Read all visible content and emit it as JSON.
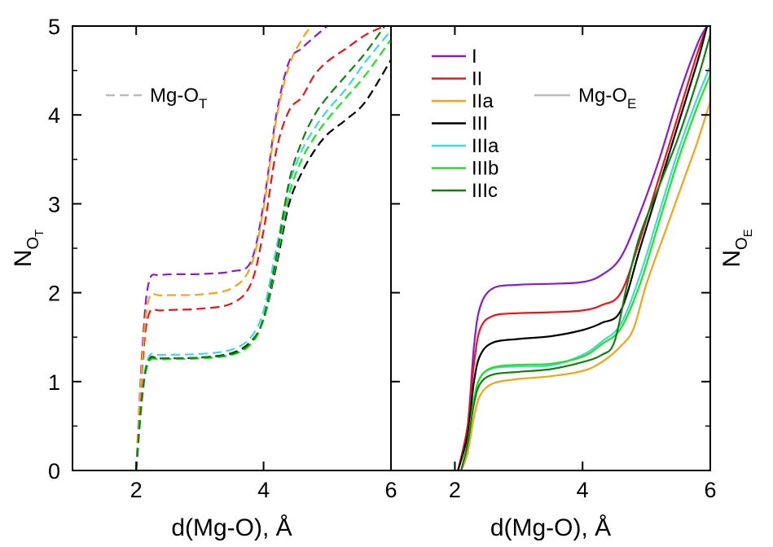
{
  "chart_data": [
    {
      "type": "line",
      "panel": "left",
      "xlabel": "d(Mg-O), Å",
      "ylabel": {
        "main": "N",
        "sub": "O",
        "subsub": "T"
      },
      "xlim": [
        1,
        6
      ],
      "ylim": [
        0,
        5
      ],
      "xticks": [
        2,
        4,
        6
      ],
      "yticks": [
        0,
        1,
        2,
        3,
        4,
        5
      ],
      "line_style": "dashed",
      "legend": {
        "label": {
          "main": "Mg-O",
          "sub": "T"
        },
        "color": "#bbbbbb",
        "style": "dashed",
        "placement": "top-left"
      },
      "series": [
        {
          "name": "I",
          "color": "#8a1cc8",
          "points": [
            [
              2.0,
              0
            ],
            [
              2.1,
              1.4
            ],
            [
              2.2,
              2.12
            ],
            [
              2.4,
              2.2
            ],
            [
              3.0,
              2.21
            ],
            [
              3.5,
              2.24
            ],
            [
              3.8,
              2.35
            ],
            [
              4.0,
              3.0
            ],
            [
              4.2,
              4.0
            ],
            [
              4.4,
              4.6
            ],
            [
              4.6,
              4.75
            ],
            [
              4.8,
              4.88
            ],
            [
              5.0,
              5.0
            ]
          ]
        },
        {
          "name": "II",
          "color": "#e8161b",
          "points": [
            [
              2.0,
              0
            ],
            [
              2.1,
              1.2
            ],
            [
              2.2,
              1.76
            ],
            [
              2.4,
              1.8
            ],
            [
              3.0,
              1.82
            ],
            [
              3.5,
              1.88
            ],
            [
              3.8,
              2.1
            ],
            [
              4.0,
              2.7
            ],
            [
              4.2,
              3.6
            ],
            [
              4.4,
              4.05
            ],
            [
              4.6,
              4.2
            ],
            [
              4.8,
              4.45
            ],
            [
              5.0,
              4.6
            ],
            [
              5.3,
              4.75
            ],
            [
              5.6,
              4.9
            ],
            [
              5.9,
              5.0
            ]
          ]
        },
        {
          "name": "IIa",
          "color": "#f5a318",
          "points": [
            [
              2.0,
              0
            ],
            [
              2.1,
              1.3
            ],
            [
              2.2,
              1.93
            ],
            [
              2.4,
              1.97
            ],
            [
              3.0,
              1.98
            ],
            [
              3.5,
              2.05
            ],
            [
              3.8,
              2.3
            ],
            [
              4.0,
              2.95
            ],
            [
              4.2,
              3.95
            ],
            [
              4.4,
              4.55
            ],
            [
              4.6,
              4.85
            ],
            [
              4.75,
              5.0
            ]
          ]
        },
        {
          "name": "III",
          "color": "#000000",
          "points": [
            [
              2.0,
              0
            ],
            [
              2.1,
              0.9
            ],
            [
              2.2,
              1.25
            ],
            [
              2.4,
              1.26
            ],
            [
              3.0,
              1.27
            ],
            [
              3.5,
              1.32
            ],
            [
              3.8,
              1.45
            ],
            [
              4.0,
              1.7
            ],
            [
              4.2,
              2.3
            ],
            [
              4.4,
              3.0
            ],
            [
              4.6,
              3.35
            ],
            [
              4.8,
              3.6
            ],
            [
              5.0,
              3.78
            ],
            [
              5.3,
              3.95
            ],
            [
              5.6,
              4.15
            ],
            [
              6.0,
              4.62
            ]
          ]
        },
        {
          "name": "IIIa",
          "color": "#40d8d8",
          "points": [
            [
              2.0,
              0
            ],
            [
              2.1,
              0.9
            ],
            [
              2.2,
              1.28
            ],
            [
              2.4,
              1.3
            ],
            [
              3.0,
              1.31
            ],
            [
              3.5,
              1.36
            ],
            [
              3.8,
              1.5
            ],
            [
              4.0,
              1.8
            ],
            [
              4.2,
              2.5
            ],
            [
              4.4,
              3.2
            ],
            [
              4.6,
              3.6
            ],
            [
              4.8,
              3.85
            ],
            [
              5.0,
              4.05
            ],
            [
              5.3,
              4.3
            ],
            [
              5.6,
              4.6
            ],
            [
              6.0,
              4.95
            ]
          ]
        },
        {
          "name": "IIIb",
          "color": "#22e222",
          "points": [
            [
              2.0,
              0
            ],
            [
              2.1,
              0.85
            ],
            [
              2.2,
              1.22
            ],
            [
              2.4,
              1.25
            ],
            [
              3.0,
              1.26
            ],
            [
              3.5,
              1.3
            ],
            [
              3.8,
              1.42
            ],
            [
              4.0,
              1.7
            ],
            [
              4.2,
              2.35
            ],
            [
              4.4,
              3.1
            ],
            [
              4.6,
              3.5
            ],
            [
              4.8,
              3.75
            ],
            [
              5.0,
              3.95
            ],
            [
              5.3,
              4.2
            ],
            [
              5.6,
              4.45
            ],
            [
              6.0,
              4.85
            ]
          ]
        },
        {
          "name": "IIIc",
          "color": "#137f13",
          "points": [
            [
              2.0,
              0
            ],
            [
              2.1,
              0.88
            ],
            [
              2.2,
              1.24
            ],
            [
              2.4,
              1.26
            ],
            [
              3.0,
              1.27
            ],
            [
              3.5,
              1.31
            ],
            [
              3.8,
              1.44
            ],
            [
              4.0,
              1.72
            ],
            [
              4.2,
              2.4
            ],
            [
              4.4,
              3.25
            ],
            [
              4.6,
              3.7
            ],
            [
              4.8,
              4.0
            ],
            [
              5.0,
              4.2
            ],
            [
              5.3,
              4.45
            ],
            [
              5.6,
              4.7
            ],
            [
              5.9,
              5.0
            ]
          ]
        }
      ]
    },
    {
      "type": "line",
      "panel": "right",
      "xlabel": "d(Mg-O), Å",
      "ylabel": {
        "main": "N",
        "sub": "O",
        "subsub": "E"
      },
      "xlim": [
        1,
        6
      ],
      "ylim": [
        0,
        5
      ],
      "xticks": [
        2,
        4,
        6
      ],
      "yticks": [
        0,
        1,
        2,
        3,
        4,
        5
      ],
      "line_style": "solid",
      "legend": {
        "label": {
          "main": "Mg-O",
          "sub": "E"
        },
        "color": "#bbbbbb",
        "style": "solid",
        "placement": "top-right"
      },
      "series": [
        {
          "name": "I",
          "color": "#8a1cc8",
          "points": [
            [
              2.05,
              0
            ],
            [
              2.2,
              0.5
            ],
            [
              2.3,
              1.4
            ],
            [
              2.4,
              1.85
            ],
            [
              2.6,
              2.05
            ],
            [
              3.0,
              2.09
            ],
            [
              3.5,
              2.1
            ],
            [
              4.0,
              2.12
            ],
            [
              4.3,
              2.2
            ],
            [
              4.6,
              2.4
            ],
            [
              4.9,
              2.9
            ],
            [
              5.2,
              3.5
            ],
            [
              5.5,
              4.2
            ],
            [
              5.8,
              4.8
            ],
            [
              5.95,
              5.0
            ]
          ]
        },
        {
          "name": "II",
          "color": "#e8161b",
          "points": [
            [
              2.05,
              0
            ],
            [
              2.2,
              0.5
            ],
            [
              2.3,
              1.2
            ],
            [
              2.4,
              1.6
            ],
            [
              2.6,
              1.74
            ],
            [
              3.0,
              1.77
            ],
            [
              3.5,
              1.78
            ],
            [
              4.0,
              1.8
            ],
            [
              4.3,
              1.86
            ],
            [
              4.6,
              2.0
            ],
            [
              4.9,
              2.6
            ],
            [
              5.2,
              3.3
            ],
            [
              5.5,
              4.0
            ],
            [
              5.8,
              4.7
            ],
            [
              5.95,
              5.0
            ]
          ]
        },
        {
          "name": "IIa",
          "color": "#f5a318",
          "points": [
            [
              2.1,
              0
            ],
            [
              2.2,
              0.2
            ],
            [
              2.3,
              0.6
            ],
            [
              2.4,
              0.85
            ],
            [
              2.6,
              0.98
            ],
            [
              3.0,
              1.03
            ],
            [
              3.5,
              1.06
            ],
            [
              4.0,
              1.12
            ],
            [
              4.3,
              1.22
            ],
            [
              4.6,
              1.4
            ],
            [
              4.8,
              1.6
            ],
            [
              5.0,
              2.1
            ],
            [
              5.3,
              2.7
            ],
            [
              5.6,
              3.3
            ],
            [
              5.8,
              3.7
            ],
            [
              6.0,
              4.15
            ]
          ]
        },
        {
          "name": "III",
          "color": "#000000",
          "points": [
            [
              2.05,
              0
            ],
            [
              2.2,
              0.4
            ],
            [
              2.3,
              1.0
            ],
            [
              2.4,
              1.3
            ],
            [
              2.6,
              1.44
            ],
            [
              3.0,
              1.48
            ],
            [
              3.5,
              1.51
            ],
            [
              4.0,
              1.58
            ],
            [
              4.3,
              1.66
            ],
            [
              4.6,
              1.8
            ],
            [
              4.9,
              2.5
            ],
            [
              5.2,
              3.2
            ],
            [
              5.5,
              3.9
            ],
            [
              5.8,
              4.6
            ],
            [
              5.95,
              5.0
            ]
          ]
        },
        {
          "name": "IIIa",
          "color": "#40d8d8",
          "points": [
            [
              2.1,
              0
            ],
            [
              2.2,
              0.3
            ],
            [
              2.3,
              0.8
            ],
            [
              2.4,
              1.05
            ],
            [
              2.6,
              1.15
            ],
            [
              3.0,
              1.17
            ],
            [
              3.5,
              1.18
            ],
            [
              4.0,
              1.3
            ],
            [
              4.3,
              1.45
            ],
            [
              4.6,
              1.65
            ],
            [
              4.9,
              2.2
            ],
            [
              5.2,
              2.9
            ],
            [
              5.5,
              3.6
            ],
            [
              5.8,
              4.2
            ],
            [
              6.0,
              4.55
            ]
          ]
        },
        {
          "name": "IIIb",
          "color": "#22e222",
          "points": [
            [
              2.1,
              0
            ],
            [
              2.2,
              0.3
            ],
            [
              2.3,
              0.8
            ],
            [
              2.4,
              1.05
            ],
            [
              2.6,
              1.16
            ],
            [
              3.0,
              1.19
            ],
            [
              3.5,
              1.2
            ],
            [
              4.0,
              1.28
            ],
            [
              4.3,
              1.42
            ],
            [
              4.6,
              1.6
            ],
            [
              4.9,
              2.1
            ],
            [
              5.2,
              2.8
            ],
            [
              5.5,
              3.5
            ],
            [
              5.8,
              4.1
            ],
            [
              6.0,
              4.45
            ]
          ]
        },
        {
          "name": "IIIc",
          "color": "#137f13",
          "points": [
            [
              2.1,
              0
            ],
            [
              2.2,
              0.3
            ],
            [
              2.3,
              0.75
            ],
            [
              2.4,
              0.98
            ],
            [
              2.6,
              1.08
            ],
            [
              3.0,
              1.11
            ],
            [
              3.5,
              1.14
            ],
            [
              4.0,
              1.22
            ],
            [
              4.3,
              1.3
            ],
            [
              4.5,
              1.45
            ],
            [
              4.7,
              2.1
            ],
            [
              4.9,
              2.65
            ],
            [
              5.2,
              3.2
            ],
            [
              5.5,
              3.75
            ],
            [
              5.8,
              4.4
            ],
            [
              6.0,
              4.9
            ]
          ]
        }
      ]
    }
  ],
  "series_legend_placement": "top-left of right panel"
}
